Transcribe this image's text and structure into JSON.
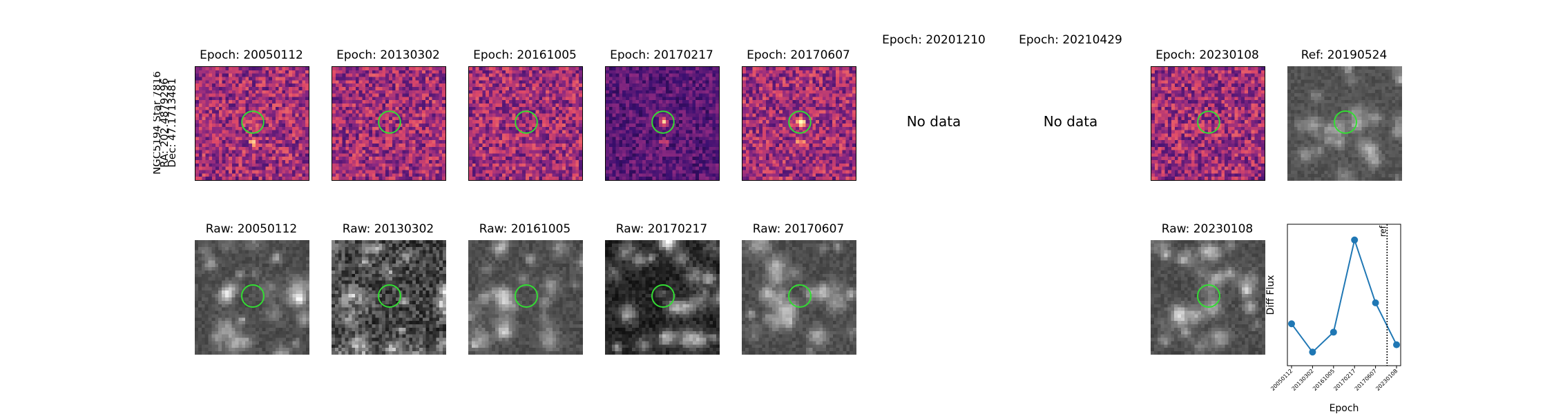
{
  "star_label": {
    "line1": "NGC5194 Star 7816",
    "line2": "RA: 202.4879296",
    "line3": "Dec: 47.1713481"
  },
  "diff_row": [
    {
      "title": "Epoch: 20050112",
      "has_data": true
    },
    {
      "title": "Epoch: 20130302",
      "has_data": true
    },
    {
      "title": "Epoch: 20161005",
      "has_data": true
    },
    {
      "title": "Epoch: 20170217",
      "has_data": true
    },
    {
      "title": "Epoch: 20170607",
      "has_data": true
    },
    {
      "title": "Epoch: 20201210",
      "has_data": false,
      "message": "No data"
    },
    {
      "title": "Epoch: 20210429",
      "has_data": false,
      "message": "No data"
    },
    {
      "title": "Epoch: 20230108",
      "has_data": true
    }
  ],
  "ref_panel": {
    "title": "Ref: 20190524"
  },
  "raw_row": [
    {
      "title": "Raw: 20050112"
    },
    {
      "title": "Raw: 20130302"
    },
    {
      "title": "Raw: 20161005"
    },
    {
      "title": "Raw: 20170217"
    },
    {
      "title": "Raw: 20170607"
    },
    {
      "title": "Raw: 20230108"
    }
  ],
  "colors": {
    "aperture": "#33dd33",
    "series": "#1f77b4",
    "cmap_diff": "magma",
    "cmap_raw": "gray"
  },
  "chart_data": {
    "type": "line",
    "title": "",
    "xlabel": "Epoch",
    "ylabel": "Diff Flux",
    "x": [
      "20050112",
      "20130302",
      "20161005",
      "20170217",
      "20170607",
      "20230108"
    ],
    "values": [
      0.35,
      0.08,
      0.27,
      1.15,
      0.55,
      0.15
    ],
    "ylim": [
      -0.05,
      1.3
    ],
    "y_ticks_shown": false,
    "reference_line": {
      "label": "ref",
      "style": "dotted",
      "position_between": [
        "20170607",
        "20230108"
      ]
    },
    "grid": false
  }
}
